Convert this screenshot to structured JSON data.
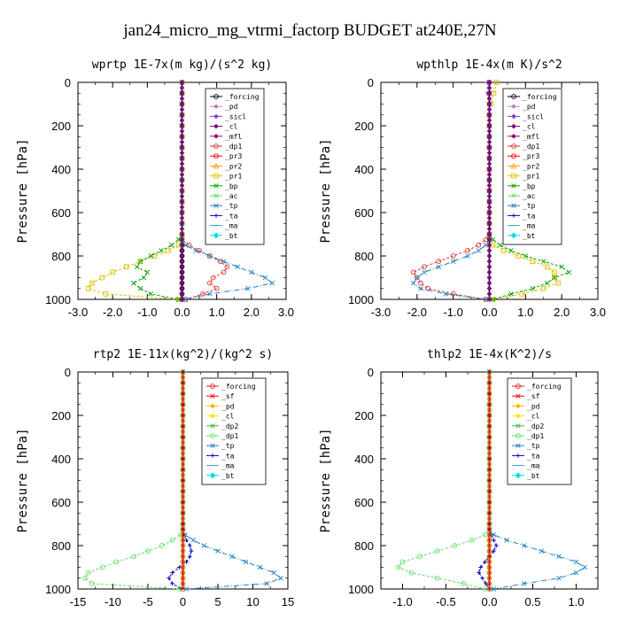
{
  "page_title": "jan24_micro_mg_vtrmi_factorp  BUDGET at240E,27N",
  "colors": {
    "_forcing": "#000000",
    "_pd": "#c080c0",
    "_sicl": "#8040c0",
    "_cl": "#800080",
    "_mfl": "#a00060",
    "_dp1": "#e03030",
    "_pr3": "#ff0000",
    "_pr2": "#ff9900",
    "_pr1": "#e0c000",
    "_bp": "#00a000",
    "_ac": "#60e060",
    "_tp": "#1a7fbf",
    "_ta": "#0000c0",
    "_ma": "#40a0c0",
    "_bt": "#00e0e0"
  },
  "chart_data": [
    {
      "type": "line",
      "title": "wprtp   1E-7x(m kg)/(s^2 kg)",
      "ylabel": "Pressure [hPa]",
      "xlim": [
        -3.0,
        3.0
      ],
      "ylim": [
        1000,
        0
      ],
      "xticks": [
        "-3.0",
        "-2.0",
        "-1.0",
        "0.0",
        "1.0",
        "2.0",
        "3.0"
      ],
      "yticks": [
        "0",
        "200",
        "400",
        "600",
        "800",
        "1000"
      ],
      "y": [
        0,
        50,
        100,
        150,
        200,
        250,
        300,
        350,
        400,
        450,
        500,
        550,
        600,
        650,
        700,
        725,
        750,
        775,
        800,
        825,
        850,
        875,
        900,
        925,
        950,
        975,
        1000
      ],
      "legend": [
        "_forcing",
        "_pd",
        "_sicl",
        "_cl",
        "_mfl",
        "_dp1",
        "_pr3",
        "_pr2",
        "_pr1",
        "_bp",
        "_ac",
        "_tp",
        "_ta",
        "_ma",
        "_bt"
      ],
      "series": [
        {
          "name": "_forcing",
          "values": [
            0,
            0,
            0,
            0,
            0,
            0,
            0,
            0,
            0,
            0,
            0,
            0,
            0,
            0,
            0,
            0,
            0,
            0,
            0,
            0,
            0,
            0,
            0,
            0,
            0,
            0,
            0
          ]
        },
        {
          "name": "_dp1",
          "values": [
            0,
            0,
            0,
            0,
            0,
            0,
            0,
            0,
            0,
            0,
            0,
            0,
            0,
            0,
            0,
            0,
            0.2,
            0.5,
            0.8,
            1.1,
            1.3,
            1.2,
            0.9,
            0.8,
            1.0,
            0.6,
            0.1
          ]
        },
        {
          "name": "_pr1",
          "values": [
            0,
            0,
            0,
            0,
            0,
            0,
            0,
            0,
            0,
            0,
            0,
            0,
            0,
            0,
            0,
            0,
            -0.1,
            -0.4,
            -0.8,
            -1.2,
            -1.6,
            -2.0,
            -2.3,
            -2.6,
            -2.7,
            -2.2,
            -0.1
          ]
        },
        {
          "name": "_bp",
          "values": [
            0,
            0,
            0,
            0,
            0,
            0,
            0,
            0,
            0,
            0,
            0,
            0,
            0,
            0,
            0,
            -0.1,
            -0.3,
            -0.6,
            -0.9,
            -1.2,
            -1.3,
            -1.0,
            -1.1,
            -1.4,
            -1.2,
            -0.9,
            -0.1
          ]
        },
        {
          "name": "_tp",
          "values": [
            0,
            0,
            0,
            0,
            0,
            0,
            0,
            0,
            0,
            0,
            0,
            0,
            0,
            0,
            0,
            0,
            0.1,
            0.4,
            0.8,
            1.2,
            1.6,
            2.0,
            2.4,
            2.6,
            1.9,
            0.8,
            0.1
          ]
        }
      ]
    },
    {
      "type": "line",
      "title": "wpthlp   1E-4x(m K)/s^2",
      "ylabel": "Pressure [hPa]",
      "xlim": [
        -3.0,
        3.0
      ],
      "ylim": [
        1000,
        0
      ],
      "xticks": [
        "-3.0",
        "-2.0",
        "-1.0",
        "0.0",
        "1.0",
        "2.0",
        "3.0"
      ],
      "yticks": [
        "0",
        "200",
        "400",
        "600",
        "800",
        "1000"
      ],
      "y": [
        0,
        50,
        100,
        150,
        200,
        250,
        300,
        350,
        400,
        450,
        500,
        550,
        600,
        650,
        700,
        725,
        750,
        775,
        800,
        825,
        850,
        875,
        900,
        925,
        950,
        975,
        1000
      ],
      "legend": [
        "_forcing",
        "_pd",
        "_sicl",
        "_cl",
        "_mfl",
        "_dp1",
        "_pr3",
        "_pr2",
        "_pr1",
        "_bp",
        "_ac",
        "_tp",
        "_ta",
        "_ma",
        "_bt"
      ],
      "series": [
        {
          "name": "_pd",
          "values": [
            -0.05,
            -0.05,
            0,
            0,
            0,
            0,
            0,
            0,
            0,
            0,
            0,
            0,
            0,
            0,
            0,
            0,
            0,
            0,
            0,
            0,
            0,
            0,
            0,
            0,
            0,
            0,
            0
          ]
        },
        {
          "name": "_pr1",
          "values": [
            0.2,
            0.12,
            0.05,
            0,
            0,
            0,
            0,
            0,
            0,
            0,
            0,
            0,
            0,
            0,
            0,
            0,
            0.1,
            0.4,
            0.8,
            1.2,
            1.6,
            1.8,
            1.8,
            1.9,
            1.5,
            0.9,
            0.1
          ]
        },
        {
          "name": "_bp",
          "values": [
            0,
            0,
            0,
            0,
            0,
            0,
            0,
            0,
            0,
            0,
            0,
            0,
            0,
            0,
            0,
            0.1,
            0.3,
            0.6,
            1.0,
            1.5,
            2.0,
            2.2,
            1.8,
            1.6,
            1.2,
            0.6,
            0.1
          ]
        },
        {
          "name": "_dp1",
          "values": [
            0,
            0,
            0,
            0,
            0,
            0,
            0,
            0,
            0,
            0,
            0,
            0,
            0,
            0,
            0,
            -0.1,
            -0.3,
            -0.6,
            -1.0,
            -1.4,
            -1.8,
            -2.1,
            -2.0,
            -1.9,
            -1.7,
            -1.0,
            -0.1
          ]
        },
        {
          "name": "_tp",
          "values": [
            0,
            0,
            0,
            0,
            0,
            0,
            0,
            0,
            0,
            0,
            0,
            0,
            0,
            0,
            0,
            0,
            -0.1,
            -0.3,
            -0.6,
            -1.0,
            -1.4,
            -1.8,
            -2.0,
            -2.1,
            -1.9,
            -1.2,
            -0.1
          ]
        }
      ]
    },
    {
      "type": "line",
      "title": "rtp2   1E-11x(kg^2)/(kg^2 s)",
      "ylabel": "Pressure [hPa]",
      "xlim": [
        -15,
        15
      ],
      "ylim": [
        1000,
        0
      ],
      "xticks": [
        "-15",
        "-10",
        "-5",
        "0",
        "5",
        "10",
        "15"
      ],
      "yticks": [
        "0",
        "200",
        "400",
        "600",
        "800",
        "1000"
      ],
      "y": [
        0,
        50,
        100,
        150,
        200,
        250,
        300,
        350,
        400,
        450,
        500,
        550,
        600,
        650,
        700,
        725,
        750,
        775,
        800,
        825,
        850,
        875,
        900,
        925,
        950,
        975,
        1000
      ],
      "legend": [
        "_forcing",
        "_sf",
        "_pd",
        "_cl",
        "_dp2",
        "_dp1",
        "_tp",
        "_ta",
        "_ma",
        "_bt"
      ],
      "series": [
        {
          "name": "_forcing",
          "values": [
            0,
            0,
            0,
            0,
            0,
            0,
            0,
            0,
            0,
            0,
            0,
            0,
            0,
            0,
            0,
            0,
            0,
            0,
            0,
            0,
            0,
            0,
            0,
            0,
            0,
            0,
            0
          ]
        },
        {
          "name": "_dp1",
          "values": [
            0,
            0,
            0,
            0,
            0,
            0,
            0,
            0,
            0,
            0,
            0,
            0,
            0,
            0,
            0,
            0,
            -0.3,
            -1.5,
            -3.0,
            -5.0,
            -7.0,
            -9.5,
            -11.5,
            -13.5,
            -14.0,
            -13.0,
            -0.5
          ]
        },
        {
          "name": "_tp",
          "values": [
            0,
            0,
            0,
            0,
            0,
            0,
            0,
            0,
            0,
            0,
            0,
            0,
            0,
            0,
            0,
            0,
            0.3,
            1.5,
            3.0,
            5.0,
            7.0,
            9.0,
            11.0,
            13.0,
            14.0,
            12.0,
            0.5
          ]
        },
        {
          "name": "_ta",
          "values": [
            0,
            0,
            0,
            0,
            0,
            0,
            0,
            0,
            0,
            0,
            0,
            0,
            0,
            0,
            0,
            0,
            0.2,
            0.5,
            1.0,
            1.2,
            1.0,
            0.5,
            -0.5,
            -1.5,
            -2.0,
            -1.5,
            -0.2
          ]
        }
      ]
    },
    {
      "type": "line",
      "title": "thlp2   1E-4x(K^2)/s",
      "ylabel": "Pressure [hPa]",
      "xlim": [
        -1.25,
        1.25
      ],
      "ylim": [
        1000,
        0
      ],
      "xticks": [
        "-1.0",
        "-0.5",
        "0.0",
        "0.5",
        "1.0"
      ],
      "xtick_values": [
        -1.0,
        -0.5,
        0.0,
        0.5,
        1.0
      ],
      "yticks": [
        "0",
        "200",
        "400",
        "600",
        "800",
        "1000"
      ],
      "y": [
        0,
        50,
        100,
        150,
        200,
        250,
        300,
        350,
        400,
        450,
        500,
        550,
        600,
        650,
        700,
        725,
        750,
        775,
        800,
        825,
        850,
        875,
        900,
        925,
        950,
        975,
        1000
      ],
      "legend": [
        "_forcing",
        "_sf",
        "_pd",
        "_cl",
        "_dp2",
        "_dp1",
        "_tp",
        "_ta",
        "_ma",
        "_bt"
      ],
      "series": [
        {
          "name": "_forcing",
          "values": [
            0,
            0,
            0,
            0,
            0,
            0,
            0,
            0,
            0,
            0,
            0,
            0,
            0,
            0,
            0,
            0,
            0,
            0,
            0,
            0,
            0,
            0,
            0,
            0,
            0,
            0,
            0
          ]
        },
        {
          "name": "_dp1",
          "values": [
            0,
            0,
            0,
            0,
            0,
            0,
            0,
            0,
            0,
            0,
            0,
            0,
            0,
            0,
            0,
            0,
            -0.05,
            -0.2,
            -0.4,
            -0.6,
            -0.8,
            -1.0,
            -1.05,
            -0.9,
            -0.6,
            -0.3,
            -0.05
          ]
        },
        {
          "name": "_tp",
          "values": [
            0,
            0,
            0,
            0,
            0,
            0,
            0,
            0,
            0,
            0,
            0,
            0,
            0,
            0,
            0,
            0,
            0.05,
            0.2,
            0.4,
            0.6,
            0.8,
            1.0,
            1.1,
            1.0,
            0.8,
            0.4,
            0.05
          ]
        },
        {
          "name": "_ta",
          "values": [
            0,
            0,
            0,
            0,
            0,
            0,
            0,
            0,
            0,
            0,
            0,
            0,
            0,
            0,
            0,
            0,
            0.02,
            0.05,
            0.08,
            0.05,
            0.0,
            -0.05,
            -0.1,
            -0.12,
            -0.08,
            -0.04,
            0
          ]
        }
      ]
    }
  ]
}
